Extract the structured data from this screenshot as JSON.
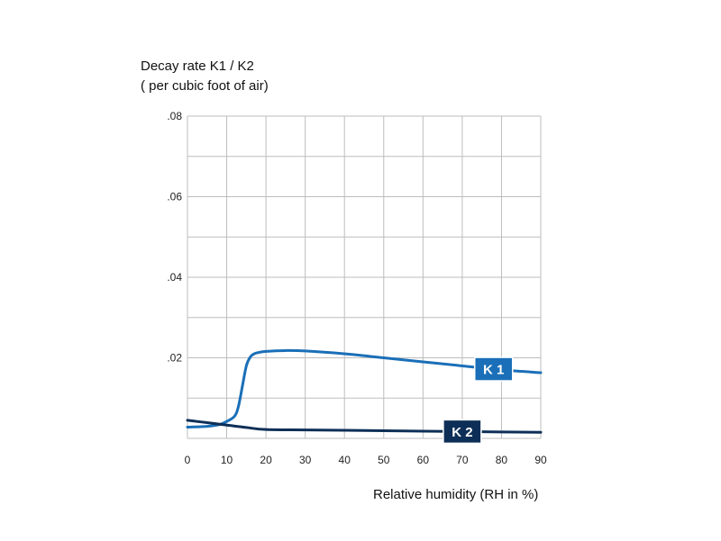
{
  "chart_data": {
    "type": "line",
    "ylabel_line1": "Decay rate K1 / K2",
    "ylabel_line2": "( per cubic foot of air)",
    "xlabel": "Relative humidity (RH in %)",
    "xlim": [
      0,
      90
    ],
    "ylim": [
      0,
      0.08
    ],
    "grid": true,
    "x_ticks": [
      0,
      10,
      20,
      30,
      40,
      50,
      60,
      70,
      80,
      90
    ],
    "x_tick_labels": [
      "0",
      "10",
      "20",
      "30",
      "40",
      "50",
      "60",
      "70",
      "80",
      "90"
    ],
    "y_ticks": [
      0.02,
      0.04,
      0.06,
      0.08
    ],
    "y_tick_labels": [
      ".02",
      ".04",
      ".06",
      ".08"
    ],
    "series": [
      {
        "name": "K 1",
        "color": "#1a6fb8",
        "label_at_x": 78,
        "x": [
          0,
          5,
          8,
          10,
          12,
          13,
          14,
          15,
          16,
          17,
          18,
          20,
          25,
          30,
          40,
          50,
          60,
          70,
          80,
          90
        ],
        "y": [
          0.0028,
          0.003,
          0.0034,
          0.0042,
          0.0055,
          0.008,
          0.013,
          0.018,
          0.0202,
          0.021,
          0.0213,
          0.0216,
          0.0218,
          0.0217,
          0.021,
          0.02,
          0.019,
          0.018,
          0.017,
          0.0163
        ]
      },
      {
        "name": "K 2",
        "color": "#0d2f57",
        "label_at_x": 70,
        "x": [
          0,
          5,
          10,
          15,
          20,
          30,
          40,
          50,
          60,
          70,
          80,
          90
        ],
        "y": [
          0.0045,
          0.0039,
          0.0033,
          0.0027,
          0.0022,
          0.0021,
          0.002,
          0.0019,
          0.0018,
          0.0017,
          0.0016,
          0.0015
        ]
      }
    ]
  }
}
